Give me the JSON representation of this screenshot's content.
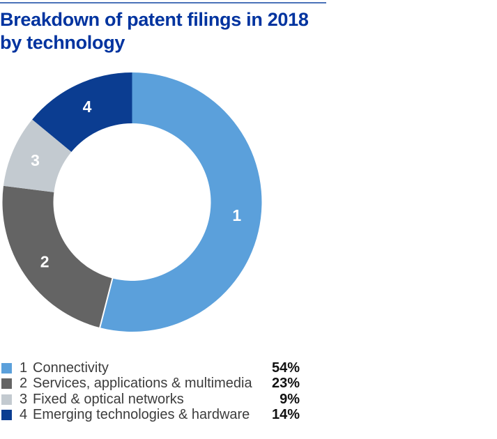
{
  "header": {
    "title_line1": "Breakdown of patent filings in 2018",
    "title_line2": "by technology",
    "title": "Breakdown of patent filings in 2018 by technology"
  },
  "chart_data": {
    "type": "pie",
    "subtype": "donut",
    "title": "Breakdown of patent filings in 2018 by technology",
    "unit": "%",
    "start_angle_deg": 0,
    "direction": "clockwise",
    "inner_radius_ratio": 0.607,
    "legend_position": "bottom",
    "slice_label_color": "#ffffff",
    "separator_after_indices": [
      0
    ],
    "segments": [
      {
        "index": "1",
        "label": "Connectivity",
        "value": 54,
        "percent_label": "54%",
        "color": "#5ba0db"
      },
      {
        "index": "2",
        "label": "Services, applications & multimedia",
        "value": 23,
        "percent_label": "23%",
        "color": "#646464"
      },
      {
        "index": "3",
        "label": "Fixed & optical networks",
        "value": 9,
        "percent_label": "9%",
        "color": "#c3cad0"
      },
      {
        "index": "4",
        "label": "Emerging technologies & hardware",
        "value": 14,
        "percent_label": "14%",
        "color": "#0b3d91"
      }
    ]
  },
  "style": {
    "title_color": "#00339f",
    "rule_color": "#4a72b8",
    "legend_text_color": "#3c3c3c",
    "percent_text_color": "#111111",
    "background_color": "#ffffff"
  }
}
